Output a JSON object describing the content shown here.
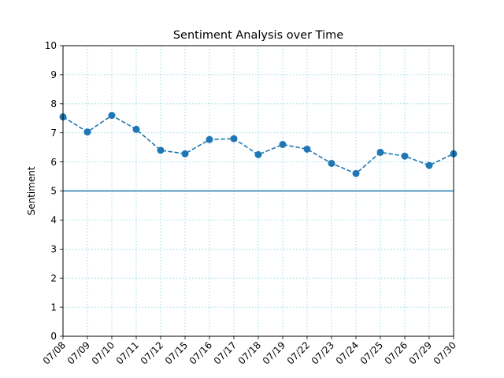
{
  "chart_data": {
    "type": "line",
    "title": "Sentiment Analysis over Time",
    "xlabel": "",
    "ylabel": "Sentiment",
    "categories": [
      "07/08",
      "07/09",
      "07/10",
      "07/11",
      "07/12",
      "07/15",
      "07/16",
      "07/17",
      "07/18",
      "07/19",
      "07/22",
      "07/23",
      "07/24",
      "07/25",
      "07/26",
      "07/29",
      "07/30"
    ],
    "series": [
      {
        "values": [
          7.55,
          7.03,
          7.6,
          7.12,
          6.4,
          6.28,
          6.77,
          6.8,
          6.25,
          6.6,
          6.44,
          5.95,
          5.6,
          6.33,
          6.2,
          5.88,
          6.28
        ],
        "color": "#1f77b4",
        "line_style": "dashed",
        "marker": "circle"
      }
    ],
    "reference_line": {
      "y": 5,
      "color": "#1f77b4"
    },
    "ylim": [
      0,
      10
    ],
    "yticks": [
      0,
      1,
      2,
      3,
      4,
      5,
      6,
      7,
      8,
      9,
      10
    ],
    "grid": true,
    "grid_color": "#7fd6e0",
    "legend": "none"
  }
}
